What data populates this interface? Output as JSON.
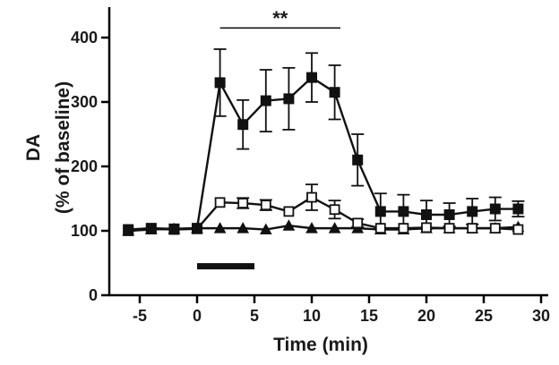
{
  "chart_data": {
    "type": "line",
    "xlabel": "Time (min)",
    "ylabel_line1": "DA",
    "ylabel_line2": "(% of baseline)",
    "xlim": [
      -7.5,
      30
    ],
    "ylim": [
      0,
      450
    ],
    "xticks": [
      -5,
      0,
      5,
      10,
      15,
      20,
      25,
      30
    ],
    "yticks": [
      0,
      100,
      200,
      300,
      400
    ],
    "x": [
      -6,
      -4,
      -2,
      0,
      2,
      4,
      6,
      8,
      10,
      12,
      14,
      16,
      18,
      20,
      22,
      24,
      26,
      28
    ],
    "series": [
      {
        "marker": "filled-square",
        "color": "#111111",
        "values": [
          102,
          104,
          103,
          104,
          330,
          265,
          302,
          305,
          338,
          315,
          210,
          130,
          130,
          125,
          125,
          130,
          134,
          134
        ],
        "errors": [
          0,
          0,
          0,
          0,
          52,
          38,
          48,
          48,
          38,
          42,
          40,
          28,
          26,
          22,
          18,
          20,
          18,
          12
        ]
      },
      {
        "marker": "open-square",
        "color": "#111111",
        "values": [
          100,
          103,
          102,
          103,
          144,
          143,
          140,
          130,
          152,
          133,
          112,
          104,
          104,
          105,
          104,
          104,
          104,
          102
        ],
        "errors": [
          0,
          0,
          0,
          0,
          0,
          8,
          8,
          0,
          20,
          14,
          6,
          0,
          0,
          0,
          0,
          0,
          0,
          0
        ]
      },
      {
        "marker": "filled-triangle",
        "color": "#111111",
        "values": [
          100,
          102,
          103,
          104,
          104,
          104,
          102,
          108,
          104,
          104,
          104,
          102,
          102,
          104,
          104,
          104,
          104,
          106
        ],
        "errors": [
          0,
          0,
          0,
          0,
          0,
          0,
          0,
          0,
          0,
          0,
          0,
          0,
          0,
          0,
          0,
          0,
          0,
          0
        ]
      }
    ],
    "significance": {
      "label": "**",
      "x_start": 2,
      "x_end": 12.5,
      "y": 415
    },
    "stimulus_bar": {
      "x_start": 0,
      "x_end": 5,
      "y": 45
    },
    "grid": false,
    "legend": "none"
  }
}
